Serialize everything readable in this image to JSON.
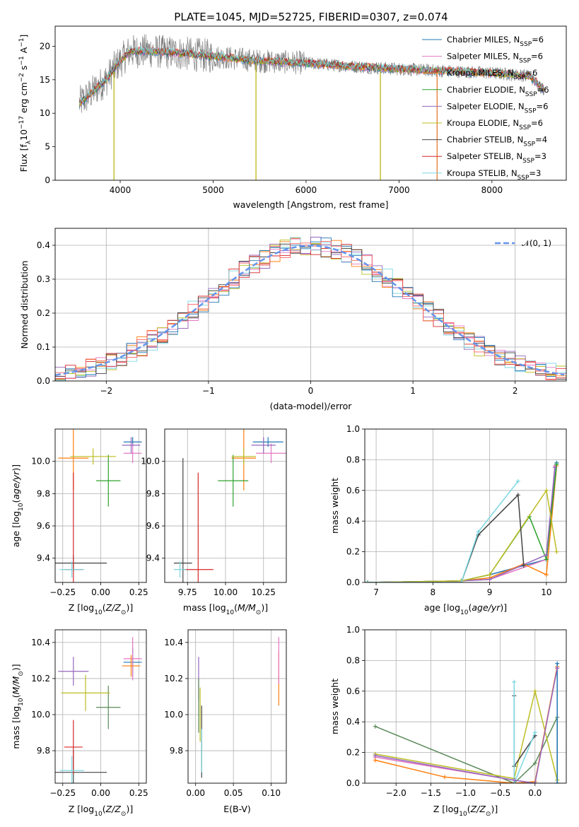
{
  "title": "PLATE=1045, MJD=52725, FIBERID=0307, z=0.074",
  "colors": {
    "chabrier_miles": "#1f77b4",
    "salpeter_miles": "#e377c2",
    "kroupa_miles": "#ff7f0e",
    "chabrier_elodie": "#2ca02c",
    "salpeter_elodie": "#9467bd",
    "kroupa_elodie": "#bcbd22",
    "chabrier_stelib": "#444444",
    "salpeter_stelib": "#d62728",
    "kroupa_stelib": "#7ad7e0",
    "data": "#808080",
    "green_dark": "#5a8a5a",
    "normal": "#6495ed"
  },
  "chart_data": [
    {
      "id": "spectrum",
      "type": "line",
      "title": "PLATE=1045, MJD=52725, FIBERID=0307, z=0.074",
      "xlabel": "wavelength [Angstrom, rest frame]",
      "ylabel": "Flux [f_λ10^-17 erg cm^-2 s^-1 A^-1]",
      "xlim": [
        3300,
        8800
      ],
      "ylim": [
        0,
        23
      ],
      "xticks": [
        "4000",
        "5000",
        "6000",
        "7000",
        "8000"
      ],
      "yticks": [
        "0",
        "5",
        "10",
        "15",
        "20"
      ],
      "legend_position": "upper right",
      "legend": [
        "Chabrier MILES, N_SSP=6",
        "Salpeter MILES, N_SSP=6",
        "Kroupa MILES, N_SSP=6",
        "Chabrier ELODIE, N_SSP=6",
        "Salpeter ELODIE, N_SSP=6",
        "Kroupa ELODIE, N_SSP=6",
        "Chabrier STELIB, N_SSP=4",
        "Salpeter STELIB, N_SSP=3",
        "Kroupa STELIB, N_SSP=3"
      ],
      "continuum_knots": {
        "x": [
          3560,
          3650,
          3750,
          3850,
          3950,
          4100,
          4300,
          4600,
          5000,
          5500,
          6000,
          6500,
          7000,
          7500,
          8000,
          8400,
          8560
        ],
        "y": [
          11.5,
          12.5,
          13.8,
          15.0,
          17.0,
          19.2,
          19.3,
          19.0,
          18.5,
          17.8,
          17.5,
          17.0,
          16.6,
          16.3,
          16.0,
          15.6,
          13.5
        ]
      },
      "absorption_spikes": [
        {
          "x": 3933,
          "y": 0
        },
        {
          "x": 5461,
          "y": 0
        },
        {
          "x": 6800,
          "y": 0
        },
        {
          "x": 7410,
          "y": 0
        }
      ]
    },
    {
      "id": "residuals",
      "type": "line",
      "xlabel": "(data-model)/error",
      "ylabel": "Normed distribution",
      "xlim": [
        -2.5,
        2.5
      ],
      "ylim": [
        0,
        0.45
      ],
      "xticks": [
        "−2",
        "−1",
        "0",
        "1",
        "2"
      ],
      "yticks": [
        "0.0",
        "0.1",
        "0.2",
        "0.3",
        "0.4"
      ],
      "legend": [
        "𝒩(0, 1)"
      ],
      "legend_position": "upper right",
      "bin_width": 0.1
    },
    {
      "id": "age_vs_Z",
      "type": "scatter",
      "xlabel": "Z [log10(Z/Z⊙)]",
      "ylabel": "age [log10(age/yr)]",
      "xlim": [
        -0.3,
        0.3
      ],
      "ylim": [
        9.25,
        10.2
      ],
      "xticks": [
        "−0.25",
        "0.00",
        "0.25"
      ],
      "yticks": [
        "9.4",
        "9.6",
        "9.8",
        "10.0"
      ],
      "points": [
        {
          "x": 0.21,
          "y": 10.12,
          "xerr": 0.06,
          "yerr": 0.03,
          "model": "chabrier_miles"
        },
        {
          "x": 0.21,
          "y": 10.05,
          "xerr": 0.06,
          "yerr": 0.06,
          "model": "salpeter_miles"
        },
        {
          "x": -0.18,
          "y": 10.02,
          "xerr": 0.1,
          "yerr": 0.2,
          "model": "kroupa_miles"
        },
        {
          "x": 0.05,
          "y": 9.88,
          "xerr": 0.08,
          "yerr": 0.16,
          "model": "chabrier_elodie"
        },
        {
          "x": 0.2,
          "y": 10.1,
          "xerr": 0.06,
          "yerr": 0.05,
          "model": "salpeter_elodie"
        },
        {
          "x": -0.05,
          "y": 10.03,
          "xerr": 0.15,
          "yerr": 0.05,
          "model": "kroupa_elodie"
        },
        {
          "x": -0.18,
          "y": 9.37,
          "xerr": 0.22,
          "yerr": 0.05,
          "model": "chabrier_stelib"
        },
        {
          "x": -0.18,
          "y": 9.33,
          "xerr": 0.06,
          "yerr": 0.6,
          "model": "salpeter_stelib"
        },
        {
          "x": -0.19,
          "y": 9.33,
          "xerr": 0.08,
          "yerr": 0.05,
          "model": "kroupa_stelib"
        }
      ]
    },
    {
      "id": "age_vs_mass",
      "type": "scatter",
      "xlabel": "mass [log10(M/M⊙)]",
      "ylabel": "",
      "xlim": [
        9.6,
        10.4
      ],
      "ylim": [
        9.25,
        10.2
      ],
      "xticks": [
        "9.75",
        "10.00",
        "10.25"
      ],
      "yticks": [
        "9.4",
        "9.6",
        "9.8",
        "10.0"
      ],
      "points": [
        {
          "x": 10.28,
          "y": 10.12,
          "xerr": 0.1,
          "yerr": 0.03,
          "model": "chabrier_miles"
        },
        {
          "x": 10.3,
          "y": 10.05,
          "xerr": 0.1,
          "yerr": 0.06,
          "model": "salpeter_miles"
        },
        {
          "x": 10.12,
          "y": 10.02,
          "xerr": 0.08,
          "yerr": 0.2,
          "model": "kroupa_miles"
        },
        {
          "x": 10.05,
          "y": 9.88,
          "xerr": 0.1,
          "yerr": 0.16,
          "model": "chabrier_elodie"
        },
        {
          "x": 10.25,
          "y": 10.1,
          "xerr": 0.08,
          "yerr": 0.05,
          "model": "salpeter_elodie"
        },
        {
          "x": 10.12,
          "y": 10.03,
          "xerr": 0.08,
          "yerr": 0.05,
          "model": "kroupa_elodie"
        },
        {
          "x": 9.72,
          "y": 9.37,
          "xerr": 0.06,
          "yerr": 0.65,
          "model": "chabrier_stelib"
        },
        {
          "x": 9.82,
          "y": 9.33,
          "xerr": 0.1,
          "yerr": 0.6,
          "model": "salpeter_stelib"
        },
        {
          "x": 9.7,
          "y": 9.33,
          "xerr": 0.04,
          "yerr": 0.05,
          "model": "kroupa_stelib"
        }
      ]
    },
    {
      "id": "massweight_vs_age",
      "type": "line",
      "xlabel": "age [log10(age/yr)]",
      "ylabel": "mass weight",
      "xlim": [
        6.8,
        10.35
      ],
      "ylim": [
        0,
        1
      ],
      "xticks": [
        "7",
        "8",
        "9",
        "10"
      ],
      "yticks": [
        "0.0",
        "0.2",
        "0.4",
        "0.6",
        "0.8",
        "1.0"
      ],
      "series": [
        {
          "model": "chabrier_miles",
          "x": [
            6.85,
            8.5,
            9.0,
            10.0,
            10.18
          ],
          "y": [
            0.0,
            0.01,
            0.05,
            0.15,
            0.78
          ]
        },
        {
          "model": "salpeter_miles",
          "x": [
            6.85,
            8.5,
            9.0,
            10.0,
            10.15
          ],
          "y": [
            0.0,
            0.01,
            0.02,
            0.15,
            0.76
          ]
        },
        {
          "model": "kroupa_miles",
          "x": [
            6.85,
            8.5,
            9.0,
            9.6,
            10.0,
            10.18
          ],
          "y": [
            0.0,
            0.01,
            0.03,
            0.12,
            0.05,
            0.76
          ]
        },
        {
          "model": "chabrier_elodie",
          "x": [
            6.85,
            8.5,
            9.0,
            9.7,
            10.0,
            10.18
          ],
          "y": [
            0.0,
            0.01,
            0.05,
            0.43,
            0.15,
            0.77
          ]
        },
        {
          "model": "salpeter_elodie",
          "x": [
            6.85,
            8.5,
            9.0,
            10.0,
            10.15
          ],
          "y": [
            0.0,
            0.01,
            0.02,
            0.18,
            0.75
          ]
        },
        {
          "model": "kroupa_elodie",
          "x": [
            6.85,
            8.5,
            9.0,
            10.0,
            10.18
          ],
          "y": [
            0.0,
            0.01,
            0.05,
            0.6,
            0.2
          ]
        },
        {
          "model": "chabrier_stelib",
          "x": [
            6.85,
            8.5,
            8.8,
            9.5,
            9.6
          ],
          "y": [
            0.0,
            0.0,
            0.31,
            0.57,
            0.11
          ]
        },
        {
          "model": "kroupa_stelib",
          "x": [
            6.85,
            8.5,
            8.8,
            9.5
          ],
          "y": [
            0.0,
            0.0,
            0.33,
            0.66
          ]
        }
      ]
    },
    {
      "id": "mass_vs_Z",
      "type": "scatter",
      "xlabel": "Z [log10(Z/Z⊙)]",
      "ylabel": "mass [log10(M/M⊙)]",
      "xlim": [
        -0.3,
        0.3
      ],
      "ylim": [
        9.62,
        10.47
      ],
      "xticks": [
        "−0.25",
        "0.00",
        "0.25"
      ],
      "yticks": [
        "9.8",
        "10.0",
        "10.2",
        "10.4"
      ],
      "points": [
        {
          "x": 0.21,
          "y": 10.29,
          "xerr": 0.06,
          "yerr": 0.08,
          "model": "chabrier_miles"
        },
        {
          "x": 0.21,
          "y": 10.31,
          "xerr": 0.06,
          "yerr": 0.12,
          "model": "salpeter_miles"
        },
        {
          "x": 0.2,
          "y": 10.27,
          "xerr": 0.06,
          "yerr": 0.06,
          "model": "kroupa_miles"
        },
        {
          "x": 0.05,
          "y": 10.04,
          "xerr": 0.08,
          "yerr": 0.12,
          "model": "green_dark"
        },
        {
          "x": -0.18,
          "y": 10.24,
          "xerr": 0.1,
          "yerr": 0.08,
          "model": "salpeter_elodie"
        },
        {
          "x": -0.1,
          "y": 10.12,
          "xerr": 0.16,
          "yerr": 0.1,
          "model": "kroupa_elodie"
        },
        {
          "x": -0.18,
          "y": 9.68,
          "xerr": 0.22,
          "yerr": 0.12,
          "model": "chabrier_stelib"
        },
        {
          "x": -0.18,
          "y": 9.82,
          "xerr": 0.06,
          "yerr": 0.15,
          "model": "salpeter_stelib"
        },
        {
          "x": -0.19,
          "y": 9.69,
          "xerr": 0.08,
          "yerr": 0.08,
          "model": "kroupa_stelib"
        }
      ]
    },
    {
      "id": "mass_vs_ebv",
      "type": "scatter",
      "xlabel": "E(B-V)",
      "ylabel": "",
      "xlim": [
        -0.01,
        0.12
      ],
      "ylim": [
        9.62,
        10.47
      ],
      "xticks": [
        "0.00",
        "0.05",
        "0.10"
      ],
      "yticks": [
        "9.8",
        "10.0",
        "10.2",
        "10.4"
      ],
      "points": [
        {
          "x": 0.11,
          "y": 10.2,
          "yerr": 0.15,
          "model": "kroupa_miles"
        },
        {
          "x": 0.11,
          "y": 10.3,
          "yerr": 0.13,
          "model": "salpeter_miles"
        },
        {
          "x": 0.004,
          "y": 10.2,
          "yerr": 0.12,
          "model": "salpeter_elodie"
        },
        {
          "x": 0.004,
          "y": 10.05,
          "yerr": 0.15,
          "model": "green_dark"
        },
        {
          "x": 0.006,
          "y": 10.0,
          "yerr": 0.15,
          "model": "kroupa_elodie"
        },
        {
          "x": 0.008,
          "y": 9.85,
          "yerr": 0.2,
          "model": "chabrier_stelib"
        },
        {
          "x": 0.008,
          "y": 9.8,
          "yerr": 0.12,
          "model": "kroupa_stelib"
        }
      ]
    },
    {
      "id": "massweight_vs_Z",
      "type": "line",
      "xlabel": "Z [log10(Z/Z⊙)]",
      "ylabel": "mass weight",
      "xlim": [
        -2.45,
        0.45
      ],
      "ylim": [
        0,
        1
      ],
      "xticks": [
        "−2.0",
        "−1.5",
        "−1.0",
        "−0.5",
        "0.0"
      ],
      "yticks": [
        "0.0",
        "0.2",
        "0.4",
        "0.6",
        "0.8",
        "1.0"
      ],
      "series": [
        {
          "model": "green_dark",
          "x": [
            -2.3,
            -0.3,
            0.0,
            0.32,
            0.32
          ],
          "y": [
            0.37,
            0.0,
            0.13,
            0.43,
            0.0
          ]
        },
        {
          "model": "salpeter_miles",
          "x": [
            -2.3,
            -0.3,
            0.0,
            0.32
          ],
          "y": [
            0.17,
            0.02,
            0.0,
            0.76
          ]
        },
        {
          "model": "kroupa_elodie",
          "x": [
            -2.3,
            -0.3,
            0.0,
            0.32
          ],
          "y": [
            0.19,
            0.03,
            0.6,
            0.02
          ]
        },
        {
          "model": "kroupa_miles",
          "x": [
            -2.3,
            -1.3,
            -0.3,
            0.0,
            0.32
          ],
          "y": [
            0.15,
            0.04,
            0.0,
            0.01,
            0.76
          ]
        },
        {
          "model": "chabrier_stelib",
          "x": [
            -0.3,
            -0.3,
            0.0
          ],
          "y": [
            0.57,
            0.11,
            0.31
          ]
        },
        {
          "model": "kroupa_stelib",
          "x": [
            -0.3,
            -0.3,
            0.0
          ],
          "y": [
            0.66,
            0.0,
            0.33
          ]
        },
        {
          "model": "chabrier_miles",
          "x": [
            0.32,
            0.32
          ],
          "y": [
            0.78,
            0.0
          ]
        },
        {
          "model": "salpeter_elodie",
          "x": [
            -2.3,
            -0.3,
            0.0,
            0.32
          ],
          "y": [
            0.18,
            0.02,
            0.0,
            0.75
          ]
        }
      ]
    }
  ]
}
